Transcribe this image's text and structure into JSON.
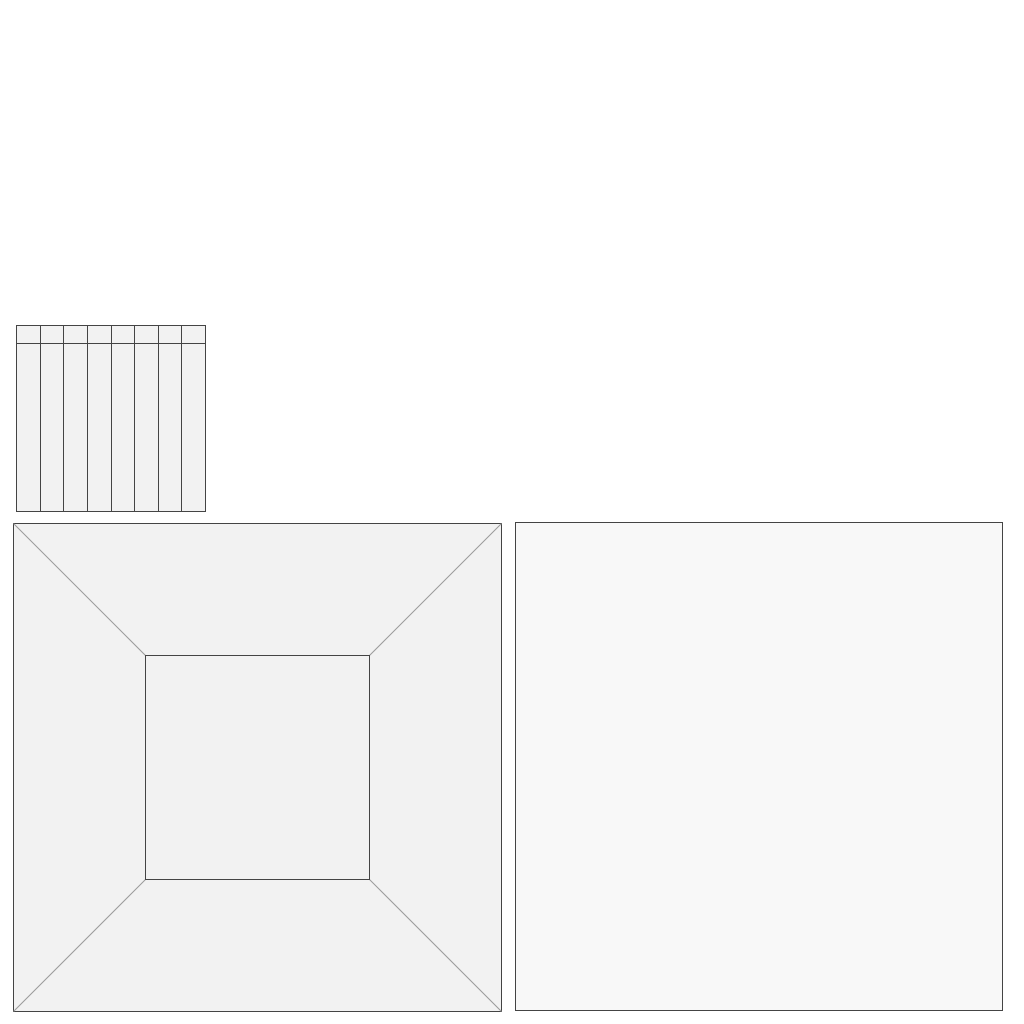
{
  "figure": {
    "grid": {
      "columns": 8,
      "fill": "#f2f2f2",
      "stroke": "#444444"
    },
    "room": {
      "outer_fill": "#f2f2f2",
      "inner_fill": "#f2f2f2",
      "edge_stroke": "#444444",
      "diagonal_stroke": "#9a9a9a"
    },
    "panel": {
      "fill": "#f8f8f8",
      "stroke": "#444444"
    }
  }
}
